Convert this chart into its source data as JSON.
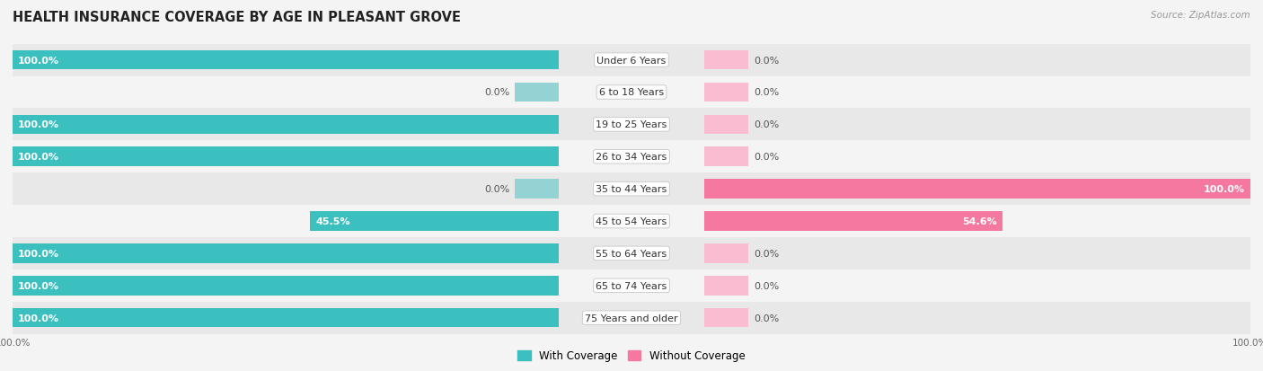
{
  "title": "HEALTH INSURANCE COVERAGE BY AGE IN PLEASANT GROVE",
  "source": "Source: ZipAtlas.com",
  "categories": [
    "Under 6 Years",
    "6 to 18 Years",
    "19 to 25 Years",
    "26 to 34 Years",
    "35 to 44 Years",
    "45 to 54 Years",
    "55 to 64 Years",
    "65 to 74 Years",
    "75 Years and older"
  ],
  "with_coverage": [
    100.0,
    0.0,
    100.0,
    100.0,
    0.0,
    45.5,
    100.0,
    100.0,
    100.0
  ],
  "without_coverage": [
    0.0,
    0.0,
    0.0,
    0.0,
    100.0,
    54.6,
    0.0,
    0.0,
    0.0
  ],
  "color_with": "#3bbfbf",
  "color_with_light": "#93d3d3",
  "color_without": "#f478a0",
  "color_without_light": "#f9bcd0",
  "row_bg_dark": "#e8e8e8",
  "row_bg_light": "#f4f4f4",
  "bar_height": 0.6,
  "stub_value": 8.0,
  "title_fontsize": 10.5,
  "label_fontsize": 8.0,
  "cat_fontsize": 8.0,
  "tick_fontsize": 7.5,
  "legend_fontsize": 8.5,
  "source_fontsize": 7.5
}
